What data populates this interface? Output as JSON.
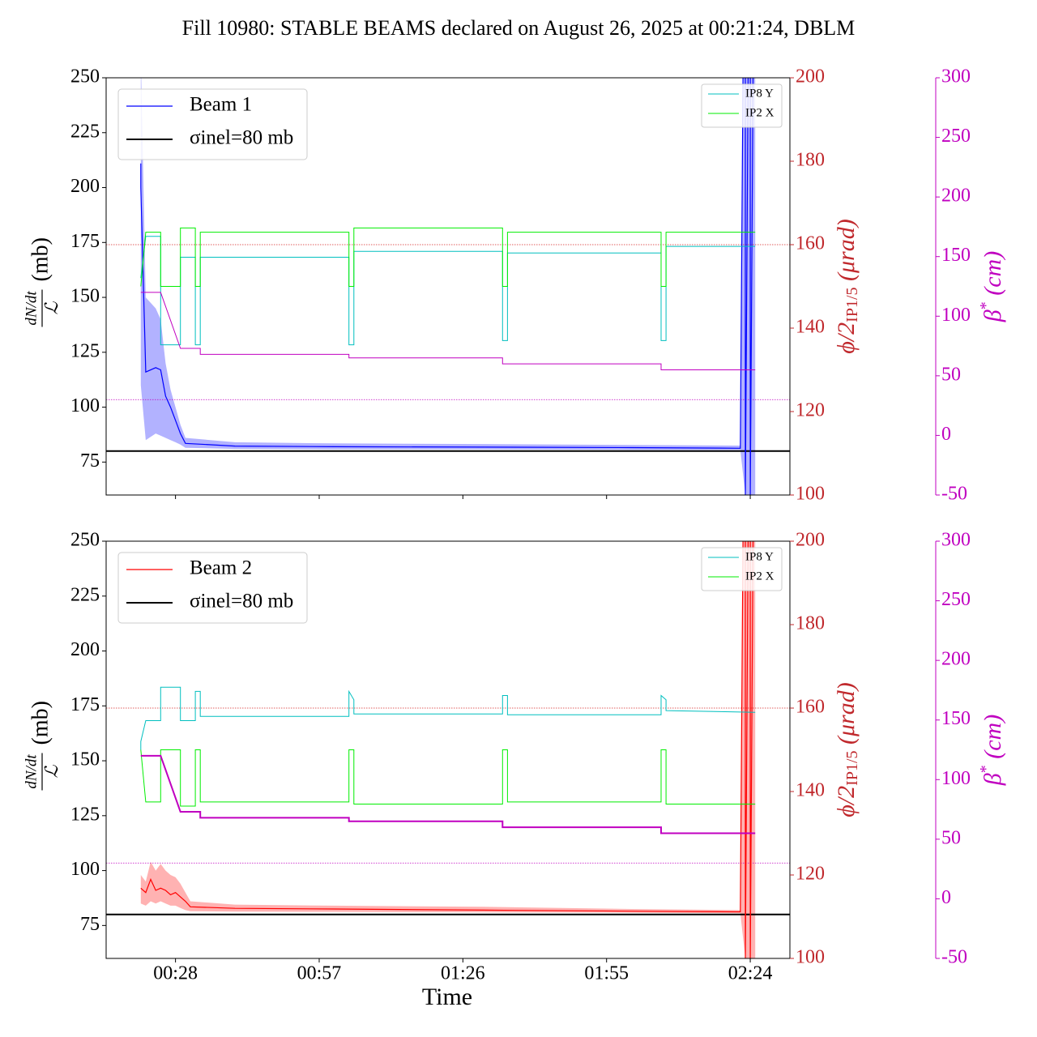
{
  "title": "Fill 10980: STABLE BEAMS declared on August 26, 2025 at 00:21:24, DBLM",
  "chart_data": [
    {
      "type": "line",
      "ylabel_num": "dN/dt",
      "ylabel_den": "ℒ",
      "ylabel_unit": "(mb)",
      "y2label": [
        "ϕ/2",
        "IP1/5",
        " (μrad)"
      ],
      "y3label": [
        "β",
        "*",
        " (cm)"
      ],
      "xlim": [
        "00:14",
        "02:32"
      ],
      "xticks": [
        "00:28",
        "00:57",
        "01:26",
        "01:55",
        "02:24"
      ],
      "ylim": [
        60,
        250
      ],
      "yticks": [
        75,
        100,
        125,
        150,
        175,
        200,
        225,
        250
      ],
      "y2lim": [
        100,
        200
      ],
      "y2ticks": [
        100,
        120,
        140,
        160,
        180,
        200
      ],
      "y2color": "#c0282c",
      "y3lim": [
        -50,
        300
      ],
      "y3ticks": [
        -50,
        0,
        50,
        100,
        150,
        200,
        250,
        300
      ],
      "y3color": "#c000c0",
      "reference_lines": [
        {
          "name": "σinel=80 mb",
          "value": 80,
          "axis": "y",
          "color": "#000000",
          "style": "solid",
          "legend": "upper left"
        },
        {
          "value": 160,
          "axis": "y2",
          "color": "#d62728",
          "style": "dotted"
        },
        {
          "value": 30,
          "axis": "y3",
          "color": "#c000c0",
          "style": "dotted"
        }
      ],
      "series": [
        {
          "name": "Beam 1",
          "color": "#0000ff",
          "axis": "y",
          "legend": "upper left",
          "width": 1.2,
          "x": [
            "00:21",
            "00:21",
            "00:22",
            "00:24",
            "00:25",
            "00:26",
            "00:27",
            "00:28",
            "00:29",
            "00:30",
            "00:40",
            "01:00",
            "01:30",
            "02:00",
            "02:22",
            "02:23",
            "02:23",
            "02:24",
            "02:24",
            "02:25"
          ],
          "values": [
            211,
            200,
            116,
            118,
            117,
            105,
            100,
            94,
            88,
            83.5,
            82.3,
            82,
            81.8,
            81.6,
            81.3,
            400,
            60,
            400,
            60,
            400
          ],
          "band_upper": [
            260,
            260,
            150,
            145,
            140,
            120,
            108,
            100,
            92,
            86,
            84,
            83.5,
            83.2,
            82.8,
            82.5,
            400,
            400,
            400,
            400,
            400
          ],
          "band_lower": [
            150,
            110,
            85,
            88,
            87,
            86,
            85,
            84,
            83,
            81.5,
            81,
            80.8,
            80.8,
            80.6,
            80.5,
            60,
            60,
            60,
            60,
            60
          ]
        },
        {
          "name": "IP8 Y",
          "color": "#00bfbf",
          "axis": "y2",
          "legend": "upper right",
          "width": 1,
          "x": [
            "00:21",
            "00:21",
            "00:22",
            "00:25",
            "00:25",
            "00:29",
            "00:29",
            "00:32",
            "00:32",
            "00:33",
            "00:33",
            "01:03",
            "01:03",
            "01:04",
            "01:04",
            "01:34",
            "01:34",
            "01:35",
            "01:35",
            "02:06",
            "02:06",
            "02:07",
            "02:07",
            "02:25"
          ],
          "values": [
            152,
            152,
            162,
            162,
            136,
            136,
            157,
            157,
            136,
            136,
            157,
            157,
            136,
            136,
            158.4,
            158.4,
            137,
            137,
            158,
            158,
            137,
            137,
            159.6,
            159.6
          ]
        },
        {
          "name": "IP2 X",
          "color": "#00ee00",
          "axis": "y2",
          "legend": "upper right",
          "width": 1,
          "x": [
            "00:21",
            "00:21",
            "00:22",
            "00:25",
            "00:25",
            "00:29",
            "00:29",
            "00:32",
            "00:32",
            "00:33",
            "00:33",
            "01:03",
            "01:03",
            "01:04",
            "01:04",
            "01:34",
            "01:34",
            "01:35",
            "01:35",
            "02:06",
            "02:06",
            "02:07",
            "02:07",
            "02:25"
          ],
          "values": [
            150,
            150,
            163,
            163,
            150,
            150,
            164,
            164,
            150,
            150,
            163,
            163,
            150,
            150,
            164,
            164,
            150,
            150,
            163,
            163,
            150,
            150,
            163,
            163
          ]
        },
        {
          "color": "#c000c0",
          "axis": "y3",
          "width": 1,
          "x": [
            "00:21",
            "00:25",
            "00:29",
            "00:33",
            "00:33",
            "01:03",
            "01:03",
            "01:34",
            "01:34",
            "02:06",
            "02:06",
            "02:25"
          ],
          "values": [
            120,
            120,
            73,
            73,
            68,
            68,
            65,
            65,
            60,
            60,
            55,
            55
          ]
        }
      ]
    },
    {
      "type": "line",
      "xlabel": "Time",
      "ylabel_num": "dN/dt",
      "ylabel_den": "ℒ",
      "ylabel_unit": "(mb)",
      "y2label": [
        "ϕ/2",
        "IP1/5",
        " (μrad)"
      ],
      "y3label": [
        "β",
        "*",
        " (cm)"
      ],
      "xlim": [
        "00:14",
        "02:32"
      ],
      "xticks": [
        "00:28",
        "00:57",
        "01:26",
        "01:55",
        "02:24"
      ],
      "ylim": [
        60,
        250
      ],
      "yticks": [
        75,
        100,
        125,
        150,
        175,
        200,
        225,
        250
      ],
      "y2lim": [
        100,
        200
      ],
      "y2ticks": [
        100,
        120,
        140,
        160,
        180,
        200
      ],
      "y2color": "#c0282c",
      "y3lim": [
        -50,
        300
      ],
      "y3ticks": [
        -50,
        0,
        50,
        100,
        150,
        200,
        250,
        300
      ],
      "y3color": "#c000c0",
      "reference_lines": [
        {
          "name": "σinel=80 mb",
          "value": 80,
          "axis": "y",
          "color": "#000000",
          "style": "solid",
          "legend": "upper left"
        },
        {
          "value": 160,
          "axis": "y2",
          "color": "#d62728",
          "style": "dotted"
        },
        {
          "value": 30,
          "axis": "y3",
          "color": "#c000c0",
          "style": "dotted"
        }
      ],
      "series": [
        {
          "name": "Beam 2",
          "color": "#ff0000",
          "axis": "y",
          "legend": "upper left",
          "width": 1.2,
          "x": [
            "00:21",
            "00:22",
            "00:23",
            "00:24",
            "00:25",
            "00:26",
            "00:27",
            "00:28",
            "00:29",
            "00:30",
            "00:31",
            "00:40",
            "01:00",
            "01:30",
            "02:00",
            "02:22",
            "02:23",
            "02:23",
            "02:24",
            "02:24",
            "02:25"
          ],
          "values": [
            92,
            90,
            96,
            91,
            92,
            91,
            89,
            90,
            88,
            86,
            83.5,
            82.8,
            82.5,
            82,
            81.5,
            81.2,
            400,
            60,
            400,
            60,
            400
          ],
          "band_upper": [
            98,
            95,
            104,
            100,
            103,
            100,
            98,
            97,
            94,
            90,
            86,
            84.5,
            84,
            83.5,
            82.5,
            82,
            400,
            400,
            400,
            400,
            400
          ],
          "band_lower": [
            85,
            84,
            86,
            85,
            86,
            85,
            84,
            84,
            83,
            82,
            81.5,
            81.3,
            81.2,
            81,
            80.8,
            80.6,
            60,
            60,
            60,
            60,
            60
          ]
        },
        {
          "name": "IP8 Y",
          "color": "#00bfbf",
          "axis": "y2",
          "legend": "upper right",
          "width": 1,
          "x": [
            "00:21",
            "00:21",
            "00:22",
            "00:25",
            "00:25",
            "00:29",
            "00:29",
            "00:32",
            "00:32",
            "00:33",
            "00:33",
            "01:03",
            "01:03",
            "01:04",
            "01:04",
            "01:34",
            "01:34",
            "01:35",
            "01:35",
            "02:06",
            "02:06",
            "02:07",
            "02:07",
            "02:25"
          ],
          "values": [
            150,
            152,
            157,
            157,
            165,
            165,
            157,
            157,
            164,
            164,
            158,
            158,
            164,
            162,
            158.6,
            158.6,
            163,
            163,
            158.4,
            158.4,
            163,
            162,
            159.4,
            159
          ]
        },
        {
          "name": "IP2 X",
          "color": "#00ee00",
          "axis": "y2",
          "legend": "upper right",
          "width": 1,
          "x": [
            "00:21",
            "00:21",
            "00:22",
            "00:25",
            "00:25",
            "00:29",
            "00:29",
            "00:32",
            "00:32",
            "00:33",
            "00:33",
            "01:03",
            "01:03",
            "01:04",
            "01:04",
            "01:34",
            "01:34",
            "01:35",
            "01:35",
            "02:06",
            "02:06",
            "02:07",
            "02:07",
            "02:25"
          ],
          "values": [
            150,
            150,
            137.5,
            137.5,
            150,
            150,
            136.5,
            136.5,
            150,
            150,
            137.5,
            137.5,
            150,
            150,
            137,
            137,
            150,
            150,
            137.5,
            137.5,
            150,
            150,
            137,
            137
          ]
        },
        {
          "color": "#c000c0",
          "axis": "y3",
          "width": 2,
          "x": [
            "00:21",
            "00:25",
            "00:29",
            "00:33",
            "00:33",
            "01:03",
            "01:03",
            "01:34",
            "01:34",
            "02:06",
            "02:06",
            "02:25"
          ],
          "values": [
            120,
            120,
            73,
            73,
            68,
            68,
            65,
            65,
            60,
            60,
            55,
            55
          ]
        }
      ]
    }
  ]
}
